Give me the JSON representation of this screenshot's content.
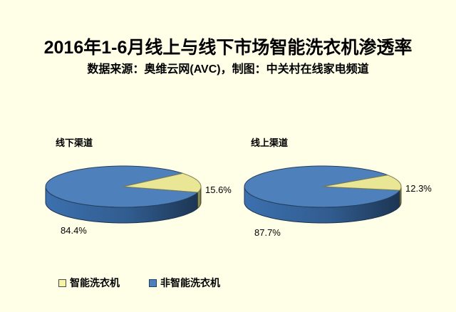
{
  "page": {
    "background": "#FFFFE8"
  },
  "header": {
    "title": "2016年1-6月线上与线下市场智能洗衣机渗透率",
    "subtitle": "数据来源：奥维云网(AVC)，制图：中关村在线家电频道"
  },
  "legend": {
    "items": [
      {
        "label": "智能洗衣机",
        "color": "#F6F3A4",
        "border": "#4A4A4A"
      },
      {
        "label": "非智能洗衣机",
        "color": "#4E80BC",
        "border": "#1F3F63"
      }
    ]
  },
  "chart_data": [
    {
      "type": "pie",
      "style": "3d",
      "title": "线下渠道",
      "legend_position": "bottom",
      "slices": [
        {
          "label": "智能洗衣机",
          "value": 15.6,
          "display": "15.6%",
          "color_top": "#E9E795",
          "color_side": "#8B8A52"
        },
        {
          "label": "非智能洗衣机",
          "value": 84.4,
          "display": "84.4%",
          "color_top": "#4E80BC",
          "color_side": "#315C8F"
        }
      ]
    },
    {
      "type": "pie",
      "style": "3d",
      "title": "线上渠道",
      "legend_position": "bottom",
      "slices": [
        {
          "label": "智能洗衣机",
          "value": 12.3,
          "display": "12.3%",
          "color_top": "#E9E795",
          "color_side": "#8B8A52"
        },
        {
          "label": "非智能洗衣机",
          "value": 87.7,
          "display": "87.7%",
          "color_top": "#4E80BC",
          "color_side": "#315C8F"
        }
      ]
    }
  ]
}
